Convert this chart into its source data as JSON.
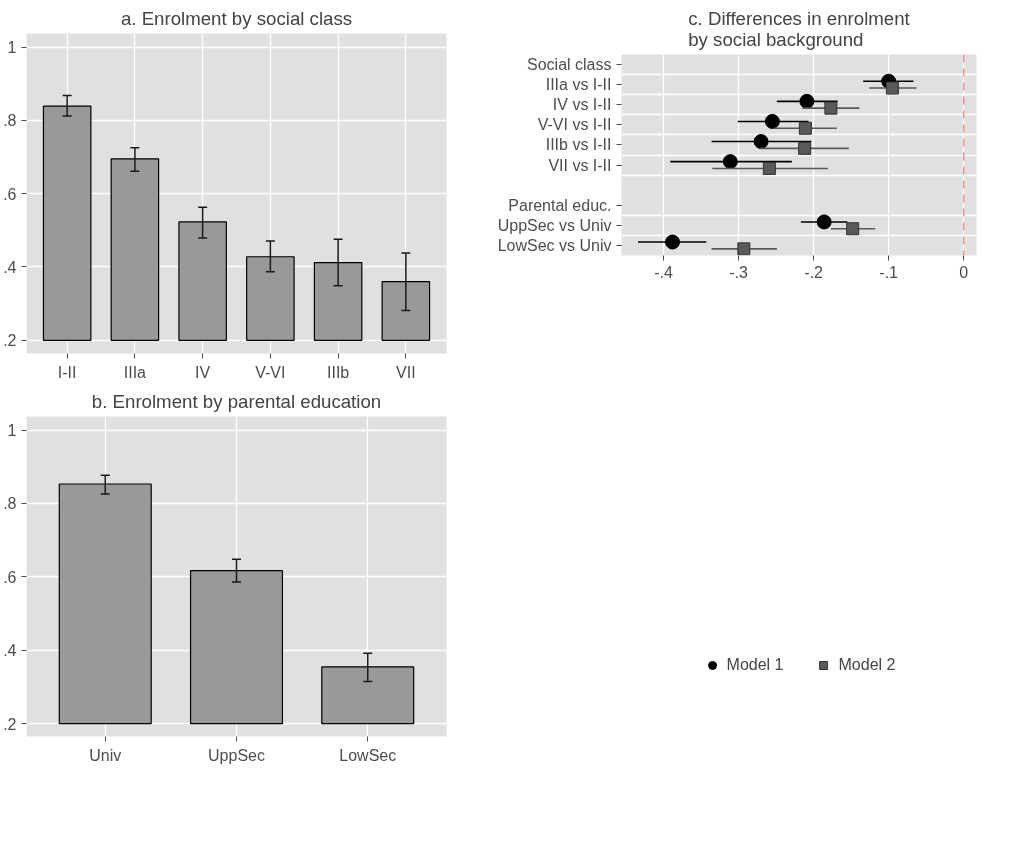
{
  "chart_data": [
    {
      "type": "bar",
      "title": "a. Enrolment by social class",
      "categories": [
        "I-II",
        "IIIa",
        "IV",
        "V-VI",
        "IIIb",
        "VII"
      ],
      "values": [
        0.639,
        0.495,
        0.323,
        0.228,
        0.212,
        0.16
      ],
      "base": [
        0.2,
        0.2,
        0.2,
        0.2,
        0.2,
        0.2
      ],
      "color": "#999999",
      "errors": [
        [
          0.812,
          0.868
        ],
        [
          0.661,
          0.725
        ],
        [
          0.479,
          0.563
        ],
        [
          0.387,
          0.471
        ],
        [
          0.349,
          0.476
        ],
        [
          0.281,
          0.438
        ]
      ],
      "ylim": [
        0.164,
        1.037
      ],
      "yticks": [
        {
          "value": 0.2,
          "label": ".2"
        },
        {
          "value": 0.4,
          "label": ".4"
        },
        {
          "value": 0.6,
          "label": ".6"
        },
        {
          "value": 0.8,
          "label": ".8"
        },
        1
      ],
      "grid": true
    },
    {
      "type": "bar",
      "title": "b. Enrolment by parental education",
      "categories": [
        "Univ",
        "UppSec",
        "LowSec"
      ],
      "values": [
        0.653,
        0.417,
        0.155
      ],
      "base": [
        0.2,
        0.2,
        0.2
      ],
      "color": "#999999",
      "errors": [
        [
          0.826,
          0.877
        ],
        [
          0.586,
          0.648
        ],
        [
          0.315,
          0.392
        ]
      ],
      "ylim": [
        0.165,
        1.037
      ],
      "yticks": [
        {
          "value": 0.2,
          "label": ".2"
        },
        {
          "value": 0.4,
          "label": ".4"
        },
        {
          "value": 0.6,
          "label": ".6"
        },
        {
          "value": 0.8,
          "label": ".8"
        },
        1
      ],
      "grid": true
    },
    {
      "type": "scatter",
      "orientation": "horizontal",
      "title": "c. Differences in enrolment\nby social background",
      "categories": [
        "Social class",
        "IIIa vs I-II",
        "IV vs I-II",
        "V-VI vs I-II",
        "IIIb vs I-II",
        "VII vs I-II",
        null,
        "Parental educ.",
        "UppSec vs Univ",
        "LowSec vs Univ"
      ],
      "series": [
        {
          "name": "Model 1",
          "color": "#000000",
          "marker": "circle",
          "values": [
            null,
            -0.1,
            -0.209,
            -0.255,
            -0.27,
            -0.311,
            null,
            null,
            -0.186,
            -0.388
          ],
          "errors": [
            null,
            [
              -0.134,
              -0.067
            ],
            [
              -0.249,
              -0.168
            ],
            [
              -0.301,
              -0.207
            ],
            [
              -0.336,
              -0.203
            ],
            [
              -0.391,
              -0.229
            ],
            null,
            null,
            [
              -0.217,
              -0.155
            ],
            [
              -0.434,
              -0.343
            ]
          ]
        },
        {
          "name": "Model 2",
          "color": "#595959",
          "marker": "square",
          "values": [
            null,
            -0.095,
            -0.177,
            -0.211,
            -0.212,
            -0.259,
            null,
            null,
            -0.148,
            -0.293
          ],
          "errors": [
            null,
            [
              -0.126,
              -0.063
            ],
            [
              -0.215,
              -0.139
            ],
            [
              -0.253,
              -0.169
            ],
            [
              -0.271,
              -0.153
            ],
            [
              -0.335,
              -0.181
            ],
            null,
            null,
            [
              -0.177,
              -0.118
            ],
            [
              -0.336,
              -0.249
            ]
          ]
        }
      ],
      "xlim": [
        -0.456,
        0.017
      ],
      "xticks": [
        {
          "value": -0.4,
          "label": "-.4"
        },
        {
          "value": -0.3,
          "label": "-.3"
        },
        {
          "value": -0.2,
          "label": "-.2"
        },
        {
          "value": -0.1,
          "label": "-.1"
        },
        0
      ],
      "ref_lines": [
        {
          "axis": "x",
          "value": 0,
          "label": null,
          "color": "#e8807a",
          "line_style": "dashed"
        }
      ],
      "grid": true,
      "legend": "bottom"
    }
  ]
}
